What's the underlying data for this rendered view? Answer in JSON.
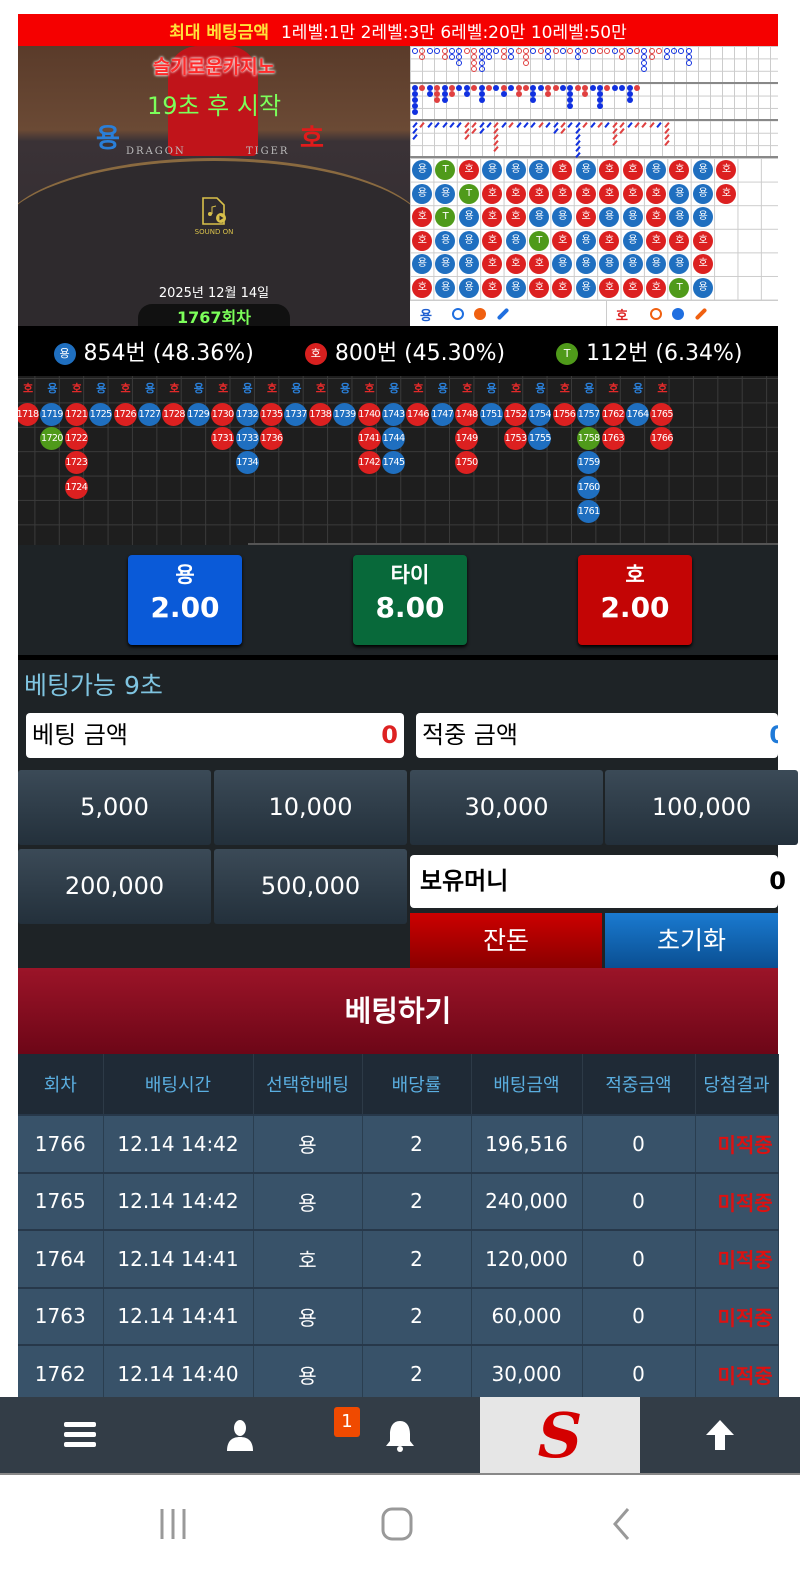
{
  "banner": {
    "title": "최대 베팅금액",
    "limits": "1레벨:1만 2레벨:3만 6레벨:20만 10레벨:50만"
  },
  "video": {
    "casino_name": "슬기로운카지노",
    "countdown": "19초 후 시작",
    "dragon": "용",
    "tiger": "호",
    "dragon_en": "DRAGON",
    "tiger_en": "TIGER",
    "sound": "SOUND ON",
    "date": "2025년 12월 14일",
    "round": "1767회차"
  },
  "colors": {
    "dragon": "#1f6fc0",
    "tiger": "#d8201f",
    "tie": "#4f9a1a"
  },
  "bead_plate": {
    "rows": [
      [
        "용",
        "T",
        "호",
        "용",
        "용",
        "용",
        "호",
        "용",
        "호",
        "호",
        "용",
        "호",
        "용",
        "호"
      ],
      [
        "용",
        "용",
        "T",
        "호",
        "호",
        "호",
        "호",
        "호",
        "호",
        "호",
        "호",
        "용",
        "용",
        "호"
      ],
      [
        "호",
        "T",
        "용",
        "호",
        "호",
        "용",
        "용",
        "호",
        "용",
        "용",
        "호",
        "용",
        "용"
      ],
      [
        "호",
        "용",
        "용",
        "호",
        "용",
        "T",
        "호",
        "용",
        "호",
        "용",
        "호",
        "호",
        "호"
      ],
      [
        "용",
        "용",
        "용",
        "호",
        "호",
        "호",
        "용",
        "용",
        "용",
        "용",
        "용",
        "용",
        "호"
      ],
      [
        "호",
        "용",
        "용",
        "호",
        "용",
        "호",
        "호",
        "용",
        "호",
        "호",
        "호",
        "T",
        "용"
      ]
    ]
  },
  "derived_roads": {
    "big_eye": [
      "B",
      "RR",
      "B",
      "B",
      "RR",
      "BB",
      "BBB",
      "R",
      "RRRR",
      "BBBB",
      "BB",
      "B",
      "RR",
      "BB",
      "R",
      "RRR",
      "B",
      "R",
      "BB",
      "R",
      "B",
      "R",
      "BB",
      "R",
      "B",
      "R",
      "R",
      "B",
      "RR",
      "B",
      "R",
      "BBBB",
      "RR",
      "R",
      "BB",
      "B",
      "B",
      "BBB"
    ],
    "small": [
      "BBBBB",
      "R",
      "BB",
      "RRR",
      "BBB",
      "RR",
      "B",
      "BB",
      "R",
      "BBB",
      "R",
      "B",
      "RB",
      "B",
      "RR",
      "R",
      "BBB",
      "B",
      "RR",
      "R",
      "B",
      "BBBB",
      "R",
      "RR",
      "B",
      "BBBB",
      "R",
      "B",
      "B",
      "BBB",
      "R"
    ],
    "cockroach": [
      "BBB",
      "R",
      "B",
      "B",
      "B",
      "B",
      "B",
      "RRR",
      "RR",
      "BB",
      "B",
      "RRRRR",
      "B",
      "R",
      "B",
      "B",
      "B",
      "R",
      "B",
      "BB",
      "RR",
      "B",
      "BBBBBB",
      "R",
      "B",
      "R",
      "B",
      "RRRR",
      "RR",
      "B",
      "R",
      "R",
      "R",
      "B",
      "RRRR"
    ]
  },
  "legend": {
    "dragon": "용",
    "tiger": "호"
  },
  "stats": {
    "dragon": {
      "icon": "용",
      "text": "854번 (48.36%)"
    },
    "tiger": {
      "icon": "호",
      "text": "800번 (45.30%)"
    },
    "tie": {
      "icon": "T",
      "text": "112번 (6.34%)"
    }
  },
  "big_road": {
    "columns": [
      {
        "label": "호",
        "cells": [
          [
            "1718",
            "R"
          ]
        ]
      },
      {
        "label": "용",
        "cells": [
          [
            "1719",
            "B"
          ],
          [
            "1720",
            "G"
          ]
        ]
      },
      {
        "label": "호",
        "cells": [
          [
            "1721",
            "R"
          ],
          [
            "1722",
            "R"
          ],
          [
            "1723",
            "R"
          ],
          [
            "1724",
            "R"
          ]
        ]
      },
      {
        "label": "용",
        "cells": [
          [
            "1725",
            "B"
          ]
        ]
      },
      {
        "label": "호",
        "cells": [
          [
            "1726",
            "R"
          ]
        ]
      },
      {
        "label": "용",
        "cells": [
          [
            "1727",
            "B"
          ]
        ]
      },
      {
        "label": "호",
        "cells": [
          [
            "1728",
            "R"
          ]
        ]
      },
      {
        "label": "용",
        "cells": [
          [
            "1729",
            "B"
          ]
        ]
      },
      {
        "label": "호",
        "cells": [
          [
            "1730",
            "R"
          ],
          [
            "1731",
            "R"
          ]
        ]
      },
      {
        "label": "용",
        "cells": [
          [
            "1732",
            "B"
          ],
          [
            "1733",
            "B"
          ],
          [
            "1734",
            "B"
          ]
        ]
      },
      {
        "label": "호",
        "cells": [
          [
            "1735",
            "R"
          ],
          [
            "1736",
            "R"
          ]
        ]
      },
      {
        "label": "용",
        "cells": [
          [
            "1737",
            "B"
          ]
        ]
      },
      {
        "label": "호",
        "cells": [
          [
            "1738",
            "R"
          ]
        ]
      },
      {
        "label": "용",
        "cells": [
          [
            "1739",
            "B"
          ]
        ]
      },
      {
        "label": "호",
        "cells": [
          [
            "1740",
            "R"
          ],
          [
            "1741",
            "R"
          ],
          [
            "1742",
            "R"
          ]
        ]
      },
      {
        "label": "용",
        "cells": [
          [
            "1743",
            "B"
          ],
          [
            "1744",
            "B"
          ],
          [
            "1745",
            "B"
          ]
        ]
      },
      {
        "label": "호",
        "cells": [
          [
            "1746",
            "R"
          ]
        ]
      },
      {
        "label": "용",
        "cells": [
          [
            "1747",
            "B"
          ]
        ]
      },
      {
        "label": "호",
        "cells": [
          [
            "1748",
            "R"
          ],
          [
            "1749",
            "R"
          ],
          [
            "1750",
            "R"
          ]
        ]
      },
      {
        "label": "용",
        "cells": [
          [
            "1751",
            "B"
          ]
        ]
      },
      {
        "label": "호",
        "cells": [
          [
            "1752",
            "R"
          ],
          [
            "1753",
            "R"
          ]
        ]
      },
      {
        "label": "용",
        "cells": [
          [
            "1754",
            "B"
          ],
          [
            "1755",
            "B"
          ]
        ]
      },
      {
        "label": "호",
        "cells": [
          [
            "1756",
            "R"
          ]
        ]
      },
      {
        "label": "용",
        "cells": [
          [
            "1757",
            "B"
          ],
          [
            "1758",
            "G"
          ],
          [
            "1759",
            "B"
          ],
          [
            "1760",
            "B"
          ],
          [
            "1761",
            "B"
          ]
        ]
      },
      {
        "label": "호",
        "cells": [
          [
            "1762",
            "R"
          ],
          [
            "1763",
            "R"
          ]
        ]
      },
      {
        "label": "용",
        "cells": [
          [
            "1764",
            "B"
          ]
        ]
      },
      {
        "label": "호",
        "cells": [
          [
            "1765",
            "R"
          ],
          [
            "1766",
            "R"
          ]
        ]
      }
    ]
  },
  "odds": {
    "dragon": {
      "label": "용",
      "value": "2.00"
    },
    "tie": {
      "label": "타이",
      "value": "8.00"
    },
    "tiger": {
      "label": "호",
      "value": "2.00"
    }
  },
  "betting": {
    "timer": "베팅가능 9초",
    "bet_amount_label": "베팅 금액",
    "bet_amount": "0",
    "win_amount_label": "적중 금액",
    "win_amount": "0",
    "chips": [
      "5,000",
      "10,000",
      "30,000",
      "100,000",
      "200,000",
      "500,000"
    ],
    "cash_label": "보유머니",
    "cash_value": "0",
    "change_btn": "잔돈",
    "reset_btn": "초기화",
    "submit": "베팅하기"
  },
  "history": {
    "headers": [
      "회차",
      "배팅시간",
      "선택한배팅",
      "배당률",
      "배팅금액",
      "적중금액",
      "당첨결과"
    ],
    "rows": [
      [
        "1766",
        "12.14 14:42",
        "용",
        "2",
        "196,516",
        "0",
        "미적중"
      ],
      [
        "1765",
        "12.14 14:42",
        "용",
        "2",
        "240,000",
        "0",
        "미적중"
      ],
      [
        "1764",
        "12.14 14:41",
        "호",
        "2",
        "120,000",
        "0",
        "미적중"
      ],
      [
        "1763",
        "12.14 14:41",
        "용",
        "2",
        "60,000",
        "0",
        "미적중"
      ],
      [
        "1762",
        "12.14 14:40",
        "용",
        "2",
        "30,000",
        "0",
        "미적중"
      ]
    ]
  },
  "nav": {
    "notification_count": "1",
    "logo": "S"
  }
}
